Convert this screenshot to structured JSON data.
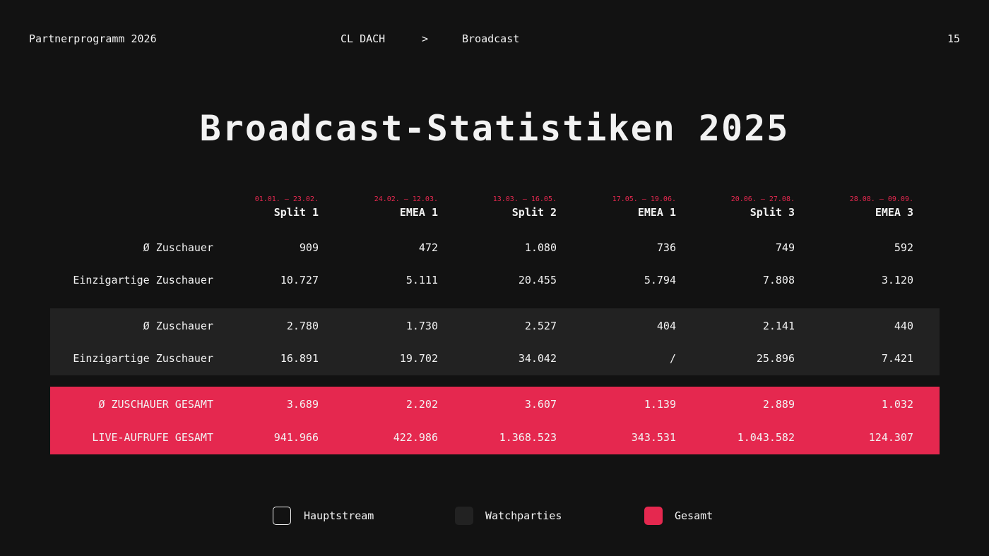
{
  "header": {
    "left": "Partnerprogramm 2026",
    "breadcrumb": [
      "CL DACH",
      ">",
      "Broadcast"
    ],
    "page": "15"
  },
  "title": "Broadcast-Statistiken 2025",
  "table": {
    "columns": [
      {
        "date": "01.01. – 23.02.",
        "label": "Split 1"
      },
      {
        "date": "24.02. – 12.03.",
        "label": "EMEA 1"
      },
      {
        "date": "13.03. – 16.05.",
        "label": "Split 2"
      },
      {
        "date": "17.05. – 19.06.",
        "label": "EMEA 1"
      },
      {
        "date": "20.06. – 27.08.",
        "label": "Split 3"
      },
      {
        "date": "28.08. – 09.09.",
        "label": "EMEA 3"
      }
    ],
    "groups": [
      {
        "rows": [
          {
            "label": "Ø Zuschauer",
            "cells": [
              "909",
              "472",
              "1.080",
              "736",
              "749",
              "592"
            ]
          },
          {
            "label": "Einzigartige Zuschauer",
            "cells": [
              "10.727",
              "5.111",
              "20.455",
              "5.794",
              "7.808",
              "3.120"
            ]
          }
        ]
      },
      {
        "rows": [
          {
            "label": "Ø Zuschauer",
            "cells": [
              "2.780",
              "1.730",
              "2.527",
              "404",
              "2.141",
              "440"
            ]
          },
          {
            "label": "Einzigartige Zuschauer",
            "cells": [
              "16.891",
              "19.702",
              "34.042",
              "/",
              "25.896",
              "7.421"
            ]
          }
        ]
      },
      {
        "rows": [
          {
            "label": "Ø ZUSCHAUER GESAMT",
            "cells": [
              "3.689",
              "2.202",
              "3.607",
              "1.139",
              "2.889",
              "1.032"
            ]
          },
          {
            "label": "LIVE-AUFRUFE GESAMT",
            "cells": [
              "941.966",
              "422.986",
              "1.368.523",
              "343.531",
              "1.043.582",
              "124.307"
            ]
          }
        ]
      }
    ]
  },
  "legend": [
    "Hauptstream",
    "Watchparties",
    "Gesamt"
  ]
}
